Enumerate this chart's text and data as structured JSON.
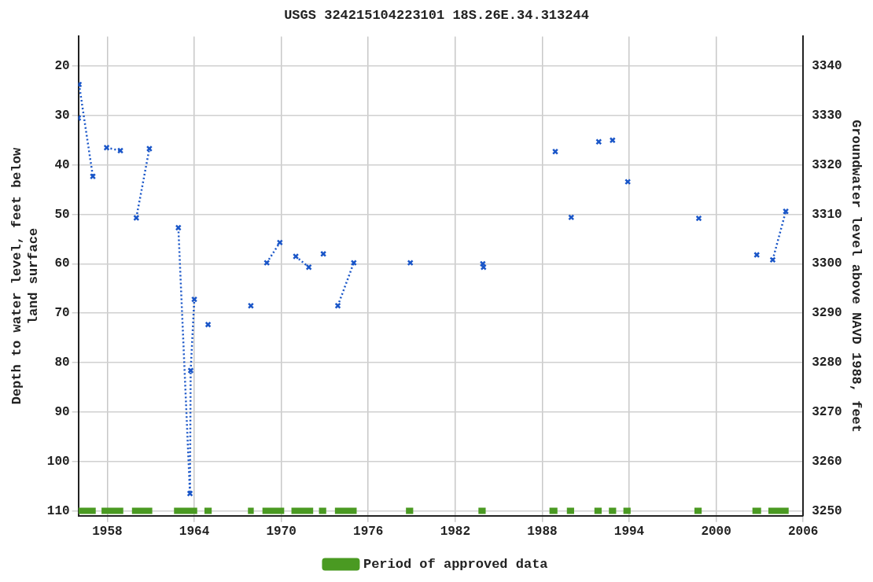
{
  "chart_data": {
    "type": "line",
    "title": "USGS 324215104223101 18S.26E.34.313244",
    "ylabel": "Depth to water level, feet below land surface",
    "y2label": "Groundwater level above NAVD 1988, feet",
    "xlim": [
      1956,
      2006
    ],
    "xticks": [
      1958,
      1964,
      1970,
      1976,
      1982,
      1988,
      1994,
      2000,
      2006
    ],
    "ylim": [
      111,
      14
    ],
    "yticks": [
      20,
      30,
      40,
      50,
      60,
      70,
      80,
      90,
      100,
      110
    ],
    "y2lim": [
      3249,
      3346
    ],
    "y2ticks": [
      3250,
      3260,
      3270,
      3280,
      3290,
      3300,
      3310,
      3320,
      3330,
      3340
    ],
    "grid": true,
    "legend": "bottom",
    "marker": "cross",
    "line_style": "dotted",
    "series": [
      {
        "color": "#1a56c8",
        "x": [
          1956.0,
          1956.02,
          1956.05,
          1957.0,
          1957.5,
          1957.95,
          1958.9,
          1959.5,
          1960.0,
          1960.9,
          1962,
          1962.9,
          1963.7,
          1963.75,
          1964.0,
          1964.5,
          1964.95,
          1967,
          1967.9,
          1968.5,
          1969.0,
          1969.9,
          1970.5,
          1971.0,
          1971.9,
          1972.5,
          1972.9,
          1973.5,
          1973.9,
          1975.0,
          1977,
          1978.9,
          1981,
          1983.9,
          1983.92,
          1983.95,
          1986,
          1988.9,
          1989.5,
          1990.0,
          1991,
          1991.9,
          1992.4,
          1992.85,
          1993.4,
          1993.9,
          1996,
          1998.8,
          2001,
          2002.8,
          2003.3,
          2003.9,
          2004.8
        ],
        "values": [
          30.5,
          null,
          23.7,
          42.3,
          null,
          36.5,
          37.1,
          null,
          50.7,
          36.7,
          null,
          52.7,
          106.5,
          81.6,
          67.2,
          null,
          72.3,
          null,
          68.5,
          null,
          59.8,
          55.7,
          null,
          58.5,
          60.7,
          null,
          58.0,
          null,
          68.5,
          59.8,
          null,
          59.8,
          null,
          60.0,
          null,
          60.7,
          null,
          37.3,
          null,
          50.6,
          null,
          35.3,
          null,
          35.0,
          null,
          43.4,
          null,
          50.8,
          null,
          58.2,
          null,
          59.2,
          49.4
        ]
      },
      {
        "name": "Period of approved data",
        "color": "#4a9a22",
        "marker": "none",
        "line_style": "solid",
        "x": [
          1956,
          1957.2,
          1957.4,
          1957.6,
          1959.1,
          1959.4,
          1959.7,
          1961.1,
          1961.8,
          1962.6,
          1964.2,
          1964.4,
          1964.7,
          1965.2,
          1966,
          1967.7,
          1968.1,
          1968.4,
          1968.7,
          1970.2,
          1970.4,
          1970.7,
          1972.2,
          1972.4,
          1972.6,
          1973.1,
          1973.4,
          1973.7,
          1975.2,
          1977,
          1978.6,
          1979.1,
          1981,
          1983.6,
          1984.1,
          1986,
          1988.5,
          1989.05,
          1989.4,
          1989.7,
          1990.2,
          1991,
          1991.6,
          1992.1,
          1992.3,
          1992.6,
          1993.1,
          1993.3,
          1993.6,
          1994.1,
          1996,
          1998.5,
          1999.0,
          2001,
          2002.5,
          2003.1,
          2003.3,
          2003.6,
          2005.0
        ],
        "values": [
          110,
          110,
          null,
          110,
          110,
          null,
          110,
          110,
          null,
          110,
          110,
          null,
          110,
          110,
          null,
          110,
          110,
          null,
          110,
          110,
          null,
          110,
          110,
          null,
          110,
          110,
          null,
          110,
          110,
          null,
          110,
          110,
          null,
          110,
          110,
          null,
          110,
          110,
          null,
          110,
          110,
          null,
          110,
          110,
          null,
          110,
          110,
          null,
          110,
          110,
          null,
          110,
          110,
          null,
          110,
          110,
          null,
          110,
          110
        ]
      }
    ]
  }
}
